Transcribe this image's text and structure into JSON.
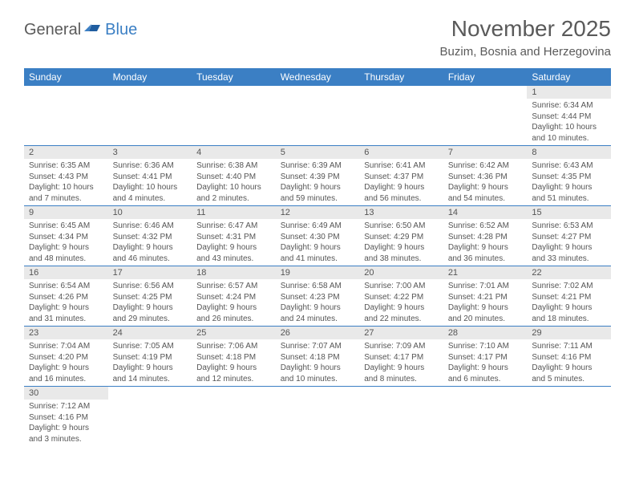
{
  "brand": {
    "text_general": "General",
    "text_blue": "Blue"
  },
  "header": {
    "month_title": "November 2025",
    "location": "Buzim, Bosnia and Herzegovina"
  },
  "style": {
    "header_row_bg": "#3b7fc4",
    "header_row_text": "#ffffff",
    "daynum_bg": "#e9e9e9",
    "row_border": "#3b7fc4",
    "text_color": "#555555",
    "title_color": "#5a5a5a",
    "title_fontsize": 28,
    "location_fontsize": 15,
    "weekday_fontsize": 12,
    "daynum_fontsize": 11,
    "cell_fontsize": 10
  },
  "weekdays": [
    "Sunday",
    "Monday",
    "Tuesday",
    "Wednesday",
    "Thursday",
    "Friday",
    "Saturday"
  ],
  "days": {
    "1": {
      "sunrise": "6:34 AM",
      "sunset": "4:44 PM",
      "daylight": "10 hours and 10 minutes."
    },
    "2": {
      "sunrise": "6:35 AM",
      "sunset": "4:43 PM",
      "daylight": "10 hours and 7 minutes."
    },
    "3": {
      "sunrise": "6:36 AM",
      "sunset": "4:41 PM",
      "daylight": "10 hours and 4 minutes."
    },
    "4": {
      "sunrise": "6:38 AM",
      "sunset": "4:40 PM",
      "daylight": "10 hours and 2 minutes."
    },
    "5": {
      "sunrise": "6:39 AM",
      "sunset": "4:39 PM",
      "daylight": "9 hours and 59 minutes."
    },
    "6": {
      "sunrise": "6:41 AM",
      "sunset": "4:37 PM",
      "daylight": "9 hours and 56 minutes."
    },
    "7": {
      "sunrise": "6:42 AM",
      "sunset": "4:36 PM",
      "daylight": "9 hours and 54 minutes."
    },
    "8": {
      "sunrise": "6:43 AM",
      "sunset": "4:35 PM",
      "daylight": "9 hours and 51 minutes."
    },
    "9": {
      "sunrise": "6:45 AM",
      "sunset": "4:34 PM",
      "daylight": "9 hours and 48 minutes."
    },
    "10": {
      "sunrise": "6:46 AM",
      "sunset": "4:32 PM",
      "daylight": "9 hours and 46 minutes."
    },
    "11": {
      "sunrise": "6:47 AM",
      "sunset": "4:31 PM",
      "daylight": "9 hours and 43 minutes."
    },
    "12": {
      "sunrise": "6:49 AM",
      "sunset": "4:30 PM",
      "daylight": "9 hours and 41 minutes."
    },
    "13": {
      "sunrise": "6:50 AM",
      "sunset": "4:29 PM",
      "daylight": "9 hours and 38 minutes."
    },
    "14": {
      "sunrise": "6:52 AM",
      "sunset": "4:28 PM",
      "daylight": "9 hours and 36 minutes."
    },
    "15": {
      "sunrise": "6:53 AM",
      "sunset": "4:27 PM",
      "daylight": "9 hours and 33 minutes."
    },
    "16": {
      "sunrise": "6:54 AM",
      "sunset": "4:26 PM",
      "daylight": "9 hours and 31 minutes."
    },
    "17": {
      "sunrise": "6:56 AM",
      "sunset": "4:25 PM",
      "daylight": "9 hours and 29 minutes."
    },
    "18": {
      "sunrise": "6:57 AM",
      "sunset": "4:24 PM",
      "daylight": "9 hours and 26 minutes."
    },
    "19": {
      "sunrise": "6:58 AM",
      "sunset": "4:23 PM",
      "daylight": "9 hours and 24 minutes."
    },
    "20": {
      "sunrise": "7:00 AM",
      "sunset": "4:22 PM",
      "daylight": "9 hours and 22 minutes."
    },
    "21": {
      "sunrise": "7:01 AM",
      "sunset": "4:21 PM",
      "daylight": "9 hours and 20 minutes."
    },
    "22": {
      "sunrise": "7:02 AM",
      "sunset": "4:21 PM",
      "daylight": "9 hours and 18 minutes."
    },
    "23": {
      "sunrise": "7:04 AM",
      "sunset": "4:20 PM",
      "daylight": "9 hours and 16 minutes."
    },
    "24": {
      "sunrise": "7:05 AM",
      "sunset": "4:19 PM",
      "daylight": "9 hours and 14 minutes."
    },
    "25": {
      "sunrise": "7:06 AM",
      "sunset": "4:18 PM",
      "daylight": "9 hours and 12 minutes."
    },
    "26": {
      "sunrise": "7:07 AM",
      "sunset": "4:18 PM",
      "daylight": "9 hours and 10 minutes."
    },
    "27": {
      "sunrise": "7:09 AM",
      "sunset": "4:17 PM",
      "daylight": "9 hours and 8 minutes."
    },
    "28": {
      "sunrise": "7:10 AM",
      "sunset": "4:17 PM",
      "daylight": "9 hours and 6 minutes."
    },
    "29": {
      "sunrise": "7:11 AM",
      "sunset": "4:16 PM",
      "daylight": "9 hours and 5 minutes."
    },
    "30": {
      "sunrise": "7:12 AM",
      "sunset": "4:16 PM",
      "daylight": "9 hours and 3 minutes."
    }
  },
  "labels": {
    "sunrise_prefix": "Sunrise: ",
    "sunset_prefix": "Sunset: ",
    "daylight_prefix": "Daylight: "
  },
  "layout": {
    "first_weekday_index": 6,
    "num_days": 30,
    "columns": 7
  }
}
